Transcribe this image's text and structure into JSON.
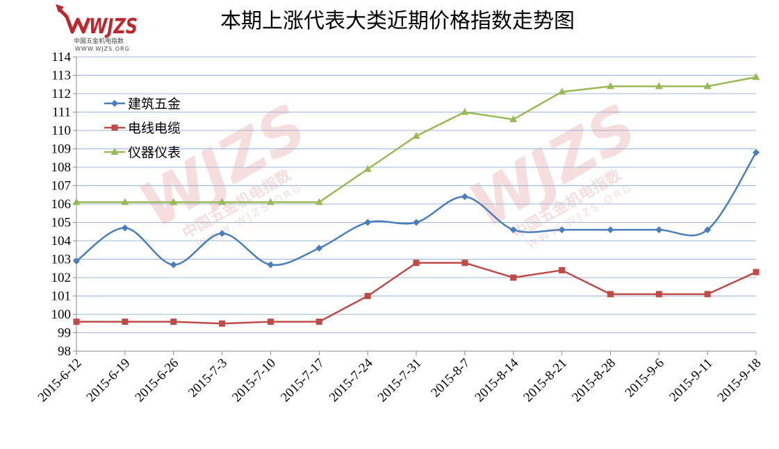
{
  "logo": {
    "text": "WJZS",
    "subtitle": "中国五金机电指数",
    "url": "WWW.WJZS.ORG",
    "color": "#c0272d"
  },
  "watermark": {
    "text": "WJZS",
    "subtitle": "中国五金机电指数",
    "url": "WWW.WJZS.ORG"
  },
  "chart_data": {
    "type": "line",
    "title": "本期上涨代表大类近期价格指数走势图",
    "xlabel": "",
    "ylabel": "",
    "ylim": [
      98,
      114
    ],
    "yticks": [
      98,
      99,
      100,
      101,
      102,
      103,
      104,
      105,
      106,
      107,
      108,
      109,
      110,
      111,
      112,
      113,
      114
    ],
    "grid": true,
    "legend_position": "top-left",
    "categories": [
      "2015-6-12",
      "2015-6-19",
      "2015-6-26",
      "2015-7-3",
      "2015-7-10",
      "2015-7-17",
      "2015-7-24",
      "2015-7-31",
      "2015-8-7",
      "2015-8-14",
      "2015-8-21",
      "2015-8-28",
      "2015-9-6",
      "2015-9-11",
      "2015-9-18"
    ],
    "series": [
      {
        "name": "建筑五金",
        "color": "#4a7ebb",
        "marker": "diamond",
        "smooth": true,
        "values": [
          102.9,
          104.7,
          102.7,
          104.4,
          102.7,
          103.6,
          105.0,
          105.0,
          106.4,
          104.6,
          104.6,
          104.6,
          104.6,
          104.6,
          108.8
        ]
      },
      {
        "name": "电线电缆",
        "color": "#be4b48",
        "marker": "square",
        "smooth": false,
        "values": [
          99.6,
          99.6,
          99.6,
          99.5,
          99.6,
          99.6,
          101.0,
          102.8,
          102.8,
          102.0,
          102.4,
          101.1,
          101.1,
          101.1,
          102.3
        ]
      },
      {
        "name": "仪器仪表",
        "color": "#98b954",
        "marker": "triangle",
        "smooth": false,
        "values": [
          106.1,
          106.1,
          106.1,
          106.1,
          106.1,
          106.1,
          107.9,
          109.7,
          111.0,
          110.6,
          112.1,
          112.4,
          112.4,
          112.4,
          112.9
        ]
      }
    ]
  }
}
